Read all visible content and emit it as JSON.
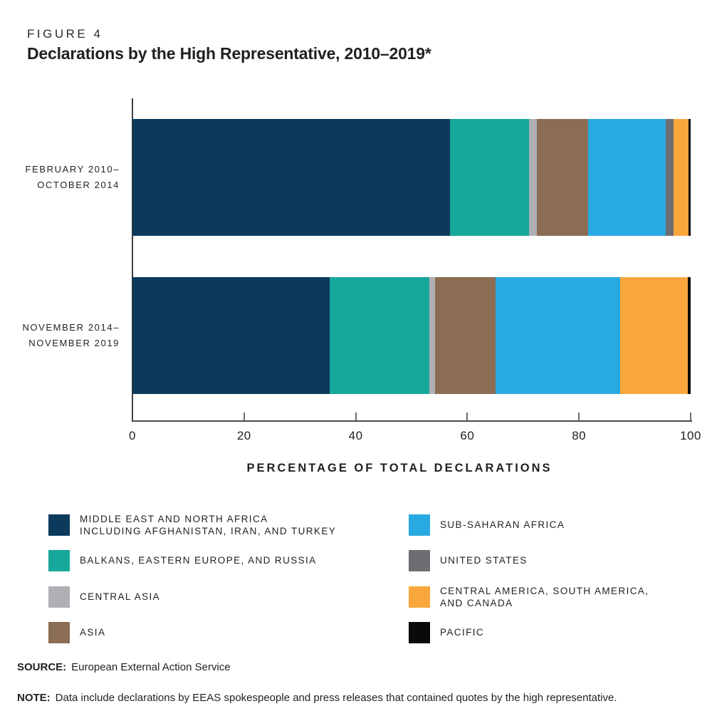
{
  "figure_label": "FIGURE 4",
  "title": "Declarations by the High Representative, 2010–2019*",
  "chart_data": {
    "type": "bar",
    "orientation": "horizontal",
    "stacked": true,
    "unit": "percent",
    "title": "Declarations by the High Representative, 2010–2019*",
    "categories": [
      {
        "lines": [
          "FEBRUARY 2010–",
          "OCTOBER 2014"
        ]
      },
      {
        "lines": [
          "NOVEMBER 2014–",
          "NOVEMBER 2019"
        ]
      }
    ],
    "series": [
      {
        "name": "MIDDLE EAST AND NORTH AFRICA INCLUDING AFGHANISTAN, IRAN, AND TURKEY",
        "color": "#0c3a5c",
        "values": [
          56.9,
          35.3
        ]
      },
      {
        "name": "BALKANS, EASTERN EUROPE, AND RUSSIA",
        "color": "#16a89a",
        "values": [
          14.1,
          17.9
        ]
      },
      {
        "name": "CENTRAL ASIA",
        "color": "#aeb0b3",
        "values": [
          1.4,
          1.0
        ]
      },
      {
        "name": "ASIA",
        "color": "#8a6d53",
        "values": [
          9.2,
          10.9
        ]
      },
      {
        "name": "SUB-SAHARAN AFRICA",
        "color": "#29a9e1",
        "values": [
          14.0,
          22.3
        ]
      },
      {
        "name": "UNITED STATES",
        "color": "#6d6e71",
        "values": [
          1.3,
          0
        ]
      },
      {
        "name": "CENTRAL AMERICA, SOUTH AMERICA, AND CANADA",
        "color": "#f9a73c",
        "values": [
          2.7,
          12.1
        ]
      },
      {
        "name": "PACIFIC",
        "color": "#0a0a0a",
        "values": [
          0.4,
          0.5
        ]
      }
    ],
    "xlabel": "PERCENTAGE OF TOTAL DECLARATIONS",
    "x_ticks": [
      0,
      20,
      40,
      60,
      80,
      100
    ],
    "xlim": [
      0,
      100
    ],
    "grid": false,
    "legend_position": "bottom"
  },
  "legend": {
    "columns": [
      [
        {
          "lines": [
            "MIDDLE EAST AND NORTH AFRICA",
            "INCLUDING AFGHANISTAN, IRAN, AND TURKEY"
          ],
          "color": "#0c3a5c"
        },
        {
          "lines": [
            "BALKANS, EASTERN EUROPE, AND RUSSIA"
          ],
          "color": "#16a89a"
        },
        {
          "lines": [
            "CENTRAL ASIA"
          ],
          "color": "#aeb0b3"
        },
        {
          "lines": [
            "ASIA"
          ],
          "color": "#8a6d53"
        }
      ],
      [
        {
          "lines": [
            "SUB-SAHARAN AFRICA"
          ],
          "color": "#29a9e1"
        },
        {
          "lines": [
            "UNITED STATES"
          ],
          "color": "#6d6e71"
        },
        {
          "lines": [
            "CENTRAL AMERICA, SOUTH AMERICA,",
            "AND CANADA"
          ],
          "color": "#f9a73c"
        },
        {
          "lines": [
            "PACIFIC"
          ],
          "color": "#0a0a0a"
        }
      ]
    ]
  },
  "source": {
    "label": "SOURCE:",
    "text": "European External Action Service"
  },
  "note": {
    "label": "NOTE:",
    "text": "Data include declarations by EEAS spokespeople and press releases that contained quotes by the high representative."
  },
  "colors": {
    "text": "#231f20",
    "axis": "#4d4d4f",
    "tick": "#6d6e71",
    "background": "#ffffff"
  }
}
